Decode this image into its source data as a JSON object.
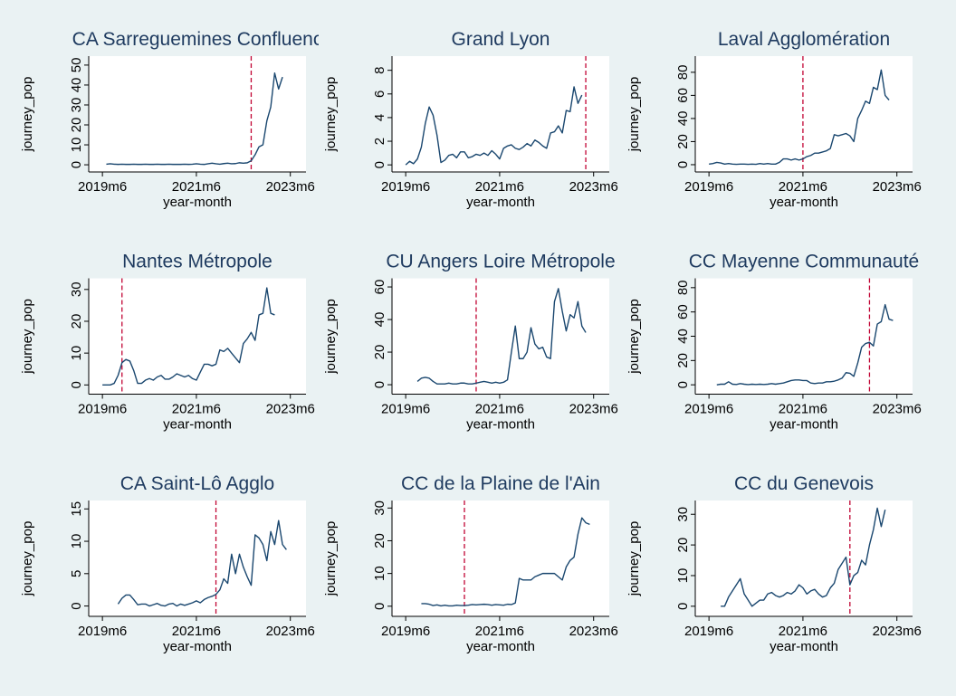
{
  "chart_data": [
    {
      "type": "line",
      "title": "CA Sarreguemines Confluenc",
      "xlabel": "year-month",
      "ylabel": "journey_pop",
      "color": "#1a476f",
      "xline": 751,
      "xline_color": "#c10534",
      "x": [
        713,
        714,
        715,
        716,
        717,
        718,
        719,
        720,
        721,
        722,
        723,
        724,
        725,
        726,
        727,
        728,
        729,
        730,
        731,
        732,
        733,
        734,
        735,
        736,
        737,
        738,
        739,
        740,
        741,
        742,
        743,
        744,
        745,
        746,
        747,
        748,
        749,
        750,
        751,
        752,
        753,
        754,
        755,
        756,
        757,
        758,
        759,
        760
      ],
      "values": [
        null,
        0.3,
        0.5,
        0.3,
        0.2,
        0.3,
        0.2,
        0.2,
        0.3,
        0.2,
        0.2,
        0.3,
        0.2,
        0.2,
        0.3,
        0.2,
        0.2,
        0.3,
        0.2,
        0.2,
        0.2,
        0.3,
        0.2,
        0.3,
        0.5,
        0.3,
        0.2,
        0.5,
        0.8,
        0.5,
        0.3,
        0.6,
        0.8,
        0.5,
        0.6,
        1,
        0.8,
        1,
        2,
        5,
        9,
        10,
        22,
        29,
        46,
        38,
        44,
        null
      ],
      "xlim": [
        709.5,
        765
      ],
      "xticks": [
        {
          "value": 713,
          "label": "2019m6"
        },
        {
          "value": 737,
          "label": "2021m6"
        },
        {
          "value": 761,
          "label": "2023m6"
        }
      ],
      "ylim": [
        -3.6,
        54.5
      ],
      "yticks": [
        0,
        10,
        20,
        30,
        40,
        50
      ]
    },
    {
      "type": "line",
      "title": "Grand Lyon",
      "xlabel": "year-month",
      "ylabel": "journey_pop",
      "color": "#1a476f",
      "xline": 759,
      "xline_color": "#c10534",
      "x": [
        713,
        714,
        715,
        716,
        717,
        718,
        719,
        720,
        721,
        722,
        723,
        724,
        725,
        726,
        727,
        728,
        729,
        730,
        731,
        732,
        733,
        734,
        735,
        736,
        737,
        738,
        739,
        740,
        741,
        742,
        743,
        744,
        745,
        746,
        747,
        748,
        749,
        750,
        751,
        752,
        753,
        754,
        755,
        756,
        757,
        758,
        759,
        760
      ],
      "values": [
        0,
        0.3,
        0.1,
        0.5,
        1.5,
        3.5,
        4.9,
        4.2,
        2.5,
        0.2,
        0.4,
        0.8,
        0.9,
        0.6,
        1.1,
        1.1,
        0.6,
        0.7,
        0.9,
        0.8,
        1.0,
        0.8,
        1.2,
        0.9,
        0.5,
        1.4,
        1.6,
        1.7,
        1.4,
        1.3,
        1.5,
        1.8,
        1.6,
        2.1,
        1.9,
        1.6,
        1.4,
        2.7,
        2.8,
        3.3,
        2.7,
        4.6,
        4.5,
        6.6,
        5.2,
        5.9,
        null,
        null
      ],
      "xlim": [
        709.5,
        765
      ],
      "xticks": [
        {
          "value": 713,
          "label": "2019m6"
        },
        {
          "value": 737,
          "label": "2021m6"
        },
        {
          "value": 761,
          "label": "2023m6"
        }
      ],
      "ylim": [
        -0.6,
        9.2
      ],
      "yticks": [
        0,
        2,
        4,
        6,
        8
      ]
    },
    {
      "type": "line",
      "title": "Laval Agglomération",
      "xlabel": "year-month",
      "ylabel": "journey_pop",
      "color": "#1a476f",
      "xline": 737,
      "xline_color": "#c10534",
      "x": [
        713,
        714,
        715,
        716,
        717,
        718,
        719,
        720,
        721,
        722,
        723,
        724,
        725,
        726,
        727,
        728,
        729,
        730,
        731,
        732,
        733,
        734,
        735,
        736,
        737,
        738,
        739,
        740,
        741,
        742,
        743,
        744,
        745,
        746,
        747,
        748,
        749,
        750,
        751,
        752,
        753,
        754,
        755,
        756,
        757,
        758,
        759,
        760
      ],
      "values": [
        0.5,
        1,
        2,
        1.5,
        0.5,
        1,
        0.5,
        0.3,
        0.5,
        0.5,
        0.3,
        0.5,
        0.3,
        1,
        0.5,
        1,
        0.5,
        0.5,
        2,
        5,
        5,
        4,
        5,
        4,
        5,
        7,
        8,
        10,
        10,
        11,
        12,
        14,
        26,
        25,
        26,
        27,
        25,
        20,
        40,
        47,
        55,
        53,
        67,
        65,
        82,
        60,
        56,
        null
      ],
      "xlim": [
        709.5,
        765
      ],
      "xticks": [
        {
          "value": 713,
          "label": "2019m6"
        },
        {
          "value": 737,
          "label": "2021m6"
        },
        {
          "value": 761,
          "label": "2023m6"
        }
      ],
      "ylim": [
        -6.3,
        94
      ],
      "yticks": [
        0,
        20,
        40,
        60,
        80
      ]
    },
    {
      "type": "line",
      "title": "Nantes Métropole",
      "xlabel": "year-month",
      "ylabel": "journey_pop",
      "color": "#1a476f",
      "xline": 718,
      "xline_color": "#c10534",
      "x": [
        713,
        714,
        715,
        716,
        717,
        718,
        719,
        720,
        721,
        722,
        723,
        724,
        725,
        726,
        727,
        728,
        729,
        730,
        731,
        732,
        733,
        734,
        735,
        736,
        737,
        738,
        739,
        740,
        741,
        742,
        743,
        744,
        745,
        746,
        747,
        748,
        749,
        750,
        751,
        752,
        753,
        754,
        755,
        756,
        757,
        758,
        759,
        760
      ],
      "values": [
        0,
        0,
        0,
        0.5,
        3,
        7,
        8,
        7.5,
        4.5,
        0.5,
        0.5,
        1.5,
        2,
        1.5,
        2.5,
        3,
        1.8,
        1.8,
        2.5,
        3.5,
        3,
        2.5,
        3,
        2,
        1.5,
        4,
        6.5,
        6.5,
        6,
        6.5,
        11,
        10.5,
        11.5,
        10,
        8.5,
        7,
        13,
        14.5,
        16.5,
        14,
        22,
        22.5,
        30.5,
        22.5,
        22,
        null,
        null,
        null
      ],
      "xlim": [
        709.5,
        765
      ],
      "xticks": [
        {
          "value": 713,
          "label": "2019m6"
        },
        {
          "value": 737,
          "label": "2021m6"
        },
        {
          "value": 761,
          "label": "2023m6"
        }
      ],
      "ylim": [
        -2.9,
        33.5
      ],
      "yticks": [
        0,
        10,
        20,
        30
      ]
    },
    {
      "type": "line",
      "title": "CU Angers Loire Métropole",
      "xlabel": "year-month",
      "ylabel": "journey_pop",
      "color": "#1a476f",
      "xline": 731,
      "xline_color": "#c10534",
      "x": [
        713,
        714,
        715,
        716,
        717,
        718,
        719,
        720,
        721,
        722,
        723,
        724,
        725,
        726,
        727,
        728,
        729,
        730,
        731,
        732,
        733,
        734,
        735,
        736,
        737,
        738,
        739,
        740,
        741,
        742,
        743,
        744,
        745,
        746,
        747,
        748,
        749,
        750,
        751,
        752,
        753,
        754,
        755,
        756,
        757,
        758,
        759,
        760
      ],
      "values": [
        null,
        null,
        null,
        2,
        4,
        4.5,
        4,
        2,
        0.5,
        0.5,
        0.5,
        1,
        0.5,
        0.5,
        1,
        1,
        0.5,
        0.5,
        1,
        1.5,
        2,
        1.5,
        1,
        1.5,
        1,
        1.5,
        3,
        20,
        36,
        16,
        16,
        20,
        35,
        25,
        22,
        23,
        17,
        16,
        51,
        59,
        45,
        33,
        43,
        41,
        51,
        36,
        32,
        null
      ],
      "xlim": [
        709.5,
        765
      ],
      "xticks": [
        {
          "value": 713,
          "label": "2019m6"
        },
        {
          "value": 737,
          "label": "2021m6"
        },
        {
          "value": 761,
          "label": "2023m6"
        }
      ],
      "ylim": [
        -5.8,
        65.3
      ],
      "yticks": [
        0,
        20,
        40,
        60
      ]
    },
    {
      "type": "line",
      "title": "CC Mayenne Communauté",
      "xlabel": "year-month",
      "ylabel": "journey_pop",
      "color": "#1a476f",
      "xline": 754,
      "xline_color": "#c10534",
      "x": [
        713,
        714,
        715,
        716,
        717,
        718,
        719,
        720,
        721,
        722,
        723,
        724,
        725,
        726,
        727,
        728,
        729,
        730,
        731,
        732,
        733,
        734,
        735,
        736,
        737,
        738,
        739,
        740,
        741,
        742,
        743,
        744,
        745,
        746,
        747,
        748,
        749,
        750,
        751,
        752,
        753,
        754,
        755,
        756,
        757,
        758,
        759,
        760
      ],
      "values": [
        null,
        null,
        0,
        0.5,
        0.5,
        2.5,
        0.5,
        0.3,
        1,
        0.5,
        0.2,
        0.5,
        0.3,
        0.5,
        0.3,
        0.5,
        1,
        0.5,
        1,
        1.5,
        2.5,
        3.5,
        4,
        4,
        3.5,
        3.5,
        1.5,
        1,
        1.5,
        1.5,
        2.5,
        2.5,
        3,
        4,
        5.5,
        10,
        9.5,
        7,
        18,
        31,
        34,
        35,
        32,
        50,
        52,
        66,
        54,
        53
      ],
      "xlim": [
        709.5,
        765
      ],
      "xticks": [
        {
          "value": 713,
          "label": "2019m6"
        },
        {
          "value": 737,
          "label": "2021m6"
        },
        {
          "value": 761,
          "label": "2023m6"
        }
      ],
      "ylim": [
        -7.7,
        87.7
      ],
      "yticks": [
        0,
        20,
        40,
        60,
        80
      ]
    },
    {
      "type": "line",
      "title": "CA Saint-Lô Agglo",
      "xlabel": "year-month",
      "ylabel": "journey_pop",
      "color": "#1a476f",
      "xline": 742,
      "xline_color": "#c10534",
      "x": [
        713,
        714,
        715,
        716,
        717,
        718,
        719,
        720,
        721,
        722,
        723,
        724,
        725,
        726,
        727,
        728,
        729,
        730,
        731,
        732,
        733,
        734,
        735,
        736,
        737,
        738,
        739,
        740,
        741,
        742,
        743,
        744,
        745,
        746,
        747,
        748,
        749,
        750,
        751,
        752,
        753,
        754,
        755,
        756,
        757,
        758,
        759,
        760
      ],
      "values": [
        null,
        null,
        null,
        null,
        0.3,
        1.2,
        1.7,
        1.7,
        1,
        0.2,
        0.3,
        0.3,
        0,
        0.2,
        0.4,
        0.1,
        0,
        0.3,
        0.4,
        0,
        0.3,
        0.1,
        0.3,
        0.5,
        0.8,
        0.5,
        1,
        1.3,
        1.5,
        1.8,
        2.5,
        4.2,
        3.5,
        8,
        5,
        8,
        6,
        4.5,
        3.2,
        11,
        10.5,
        9.5,
        7,
        11.5,
        9.5,
        13.2,
        9.5,
        8.7
      ],
      "xlim": [
        709.5,
        765
      ],
      "xticks": [
        {
          "value": 713,
          "label": "2019m6"
        },
        {
          "value": 737,
          "label": "2021m6"
        },
        {
          "value": 761,
          "label": "2023m6"
        }
      ],
      "ylim": [
        -1.6,
        16.3
      ],
      "yticks": [
        0,
        5,
        10,
        15
      ]
    },
    {
      "type": "line",
      "title": "CC de la Plaine de l'Ain",
      "xlabel": "year-month",
      "ylabel": "journey_pop",
      "color": "#1a476f",
      "xline": 728,
      "xline_color": "#c10534",
      "x": [
        713,
        714,
        715,
        716,
        717,
        718,
        719,
        720,
        721,
        722,
        723,
        724,
        725,
        726,
        727,
        728,
        729,
        730,
        731,
        732,
        733,
        734,
        735,
        736,
        737,
        738,
        739,
        740,
        741,
        742,
        743,
        744,
        745,
        746,
        747,
        748,
        749,
        750,
        751,
        752,
        753,
        754,
        755,
        756,
        757,
        758,
        759,
        760
      ],
      "values": [
        null,
        null,
        null,
        null,
        0.8,
        0.8,
        0.6,
        0.2,
        0.4,
        0.1,
        0.3,
        0.1,
        0.1,
        0.3,
        0.2,
        0.2,
        0.3,
        0.5,
        0.4,
        0.5,
        0.6,
        0.5,
        0.3,
        0.5,
        0.4,
        0.3,
        0.6,
        0.5,
        1,
        8.5,
        8,
        8,
        8,
        9,
        9.5,
        10,
        10,
        10,
        10,
        9,
        8,
        12,
        14,
        15,
        22,
        27,
        25.5,
        25
      ],
      "xlim": [
        709.5,
        765
      ],
      "xticks": [
        {
          "value": 713,
          "label": "2019m6"
        },
        {
          "value": 737,
          "label": "2021m6"
        },
        {
          "value": 761,
          "label": "2023m6"
        }
      ],
      "ylim": [
        -3.1,
        32.3
      ],
      "yticks": [
        0,
        10,
        20,
        30
      ]
    },
    {
      "type": "line",
      "title": "CC du Genevois",
      "xlabel": "year-month",
      "ylabel": "journey_pop",
      "color": "#1a476f",
      "xline": 749,
      "xline_color": "#c10534",
      "x": [
        713,
        714,
        715,
        716,
        717,
        718,
        719,
        720,
        721,
        722,
        723,
        724,
        725,
        726,
        727,
        728,
        729,
        730,
        731,
        732,
        733,
        734,
        735,
        736,
        737,
        738,
        739,
        740,
        741,
        742,
        743,
        744,
        745,
        746,
        747,
        748,
        749,
        750,
        751,
        752,
        753,
        754,
        755,
        756,
        757,
        758,
        759,
        760
      ],
      "values": [
        null,
        null,
        null,
        0,
        0,
        3,
        5,
        7,
        9,
        4,
        2,
        0,
        1,
        2,
        2,
        4,
        4.5,
        3.5,
        3,
        3.5,
        4.5,
        4,
        5,
        7,
        6,
        4,
        5,
        5.5,
        4,
        3,
        3.5,
        6,
        7.5,
        12,
        14,
        16,
        7,
        10,
        11,
        15,
        13.5,
        20,
        25,
        32,
        26,
        31.5,
        null,
        null
      ],
      "xlim": [
        709.5,
        765
      ],
      "xticks": [
        {
          "value": 713,
          "label": "2019m6"
        },
        {
          "value": 737,
          "label": "2021m6"
        },
        {
          "value": 761,
          "label": "2023m6"
        }
      ],
      "ylim": [
        -3.3,
        34.5
      ],
      "yticks": [
        0,
        10,
        20,
        30
      ]
    }
  ]
}
